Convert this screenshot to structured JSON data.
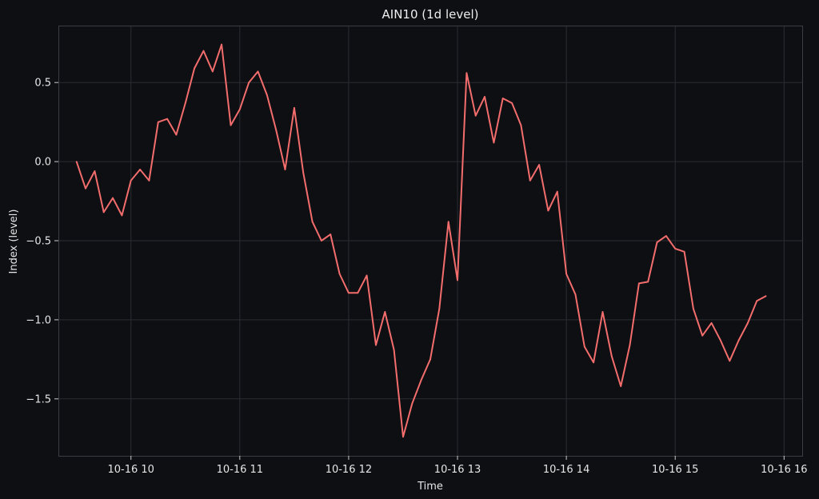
{
  "chart_data": {
    "type": "line",
    "title": "AIN10 (1d level)",
    "xlabel": "Time",
    "ylabel": "Index (level)",
    "x_tick_labels": [
      "10-16 10",
      "10-16 11",
      "10-16 12",
      "10-16 13",
      "10-16 14",
      "10-16 15",
      "10-16 16"
    ],
    "y_ticks": [
      0.5,
      0.0,
      -0.5,
      -1.0,
      -1.5
    ],
    "y_tick_labels": [
      "0.5",
      "0.0",
      "−0.5",
      "−1.0",
      "−1.5"
    ],
    "xlim": [
      "2024-10-16T09:20",
      "2024-10-16T16:10"
    ],
    "ylim": [
      -1.86,
      0.86
    ],
    "grid": true,
    "series": [
      {
        "color": "#f46d6d",
        "x": [
          "09:30",
          "09:35",
          "09:40",
          "09:45",
          "09:50",
          "09:55",
          "10:00",
          "10:05",
          "10:10",
          "10:15",
          "10:20",
          "10:25",
          "10:30",
          "10:35",
          "10:40",
          "10:45",
          "10:50",
          "10:55",
          "11:00",
          "11:05",
          "11:10",
          "11:15",
          "11:20",
          "11:25",
          "11:30",
          "11:35",
          "11:40",
          "11:45",
          "11:50",
          "11:55",
          "12:00",
          "12:05",
          "12:10",
          "12:15",
          "12:20",
          "12:25",
          "12:30",
          "12:35",
          "12:40",
          "12:45",
          "12:50",
          "12:55",
          "13:00",
          "13:05",
          "13:10",
          "13:15",
          "13:20",
          "13:25",
          "13:30",
          "13:35",
          "13:40",
          "13:45",
          "13:50",
          "13:55",
          "14:00",
          "14:05",
          "14:10",
          "14:15",
          "14:20",
          "14:25",
          "14:30",
          "14:35",
          "14:40",
          "14:45",
          "14:50",
          "14:55",
          "15:00",
          "15:05",
          "15:10",
          "15:15",
          "15:20",
          "15:25",
          "15:30",
          "15:35",
          "15:40",
          "15:45",
          "15:50"
        ],
        "y": [
          0.0,
          -0.17,
          -0.06,
          -0.32,
          -0.23,
          -0.34,
          -0.12,
          -0.05,
          -0.12,
          0.25,
          0.27,
          0.17,
          0.37,
          0.59,
          0.7,
          0.57,
          0.74,
          0.23,
          0.33,
          0.5,
          0.57,
          0.42,
          0.2,
          -0.05,
          0.34,
          -0.07,
          -0.38,
          -0.5,
          -0.46,
          -0.71,
          -0.83,
          -0.83,
          -0.72,
          -1.16,
          -0.95,
          -1.19,
          -1.74,
          -1.53,
          -1.38,
          -1.25,
          -0.93,
          -0.38,
          -0.75,
          0.56,
          0.29,
          0.41,
          0.12,
          0.4,
          0.37,
          0.23,
          -0.12,
          -0.02,
          -0.31,
          -0.19,
          -0.71,
          -0.84,
          -1.17,
          -1.27,
          -0.95,
          -1.23,
          -1.42,
          -1.16,
          -0.77,
          -0.76,
          -0.51,
          -0.47,
          -0.55,
          -0.57,
          -0.93,
          -1.1,
          -1.02,
          -1.13,
          -1.26,
          -1.13,
          -1.02,
          -0.88,
          -0.85
        ]
      }
    ]
  }
}
